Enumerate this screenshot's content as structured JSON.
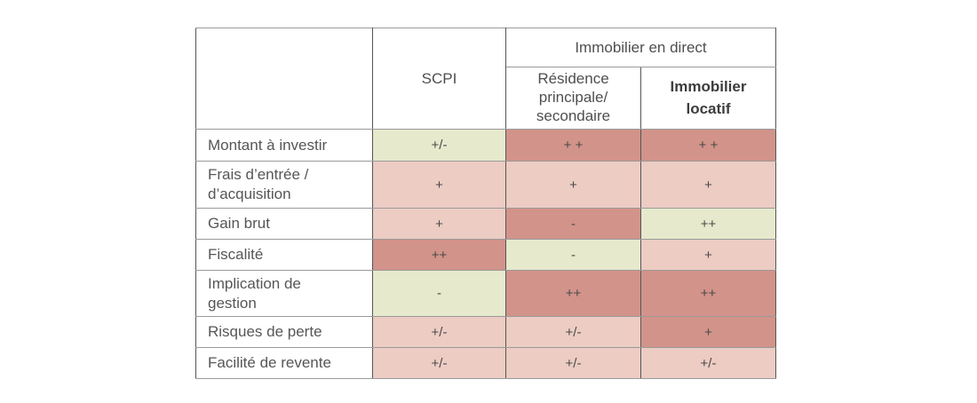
{
  "table": {
    "header": {
      "corner": "",
      "scpi": "SCPI",
      "group": "Immobilier en direct",
      "sub_residence": "Résidence principale/ secondaire",
      "sub_locatif": "Immobilier locatif"
    },
    "cell_colors": {
      "light_green": "#e6e9cc",
      "light_pink": "#ecccc3",
      "salmon": "#d2938a"
    },
    "rows": [
      {
        "label": "Montant à investir",
        "cells": [
          {
            "value": "+/-",
            "color": "light_green"
          },
          {
            "value": "+ +",
            "color": "salmon"
          },
          {
            "value": "+ +",
            "color": "salmon"
          }
        ]
      },
      {
        "label": "Frais d’entrée / d’acquisition",
        "cells": [
          {
            "value": "+",
            "color": "light_pink"
          },
          {
            "value": "+",
            "color": "light_pink"
          },
          {
            "value": "+",
            "color": "light_pink"
          }
        ]
      },
      {
        "label": "Gain brut",
        "cells": [
          {
            "value": "+",
            "color": "light_pink"
          },
          {
            "value": "-",
            "color": "salmon"
          },
          {
            "value": "++",
            "color": "light_green"
          }
        ]
      },
      {
        "label": "Fiscalité",
        "cells": [
          {
            "value": "++",
            "color": "salmon"
          },
          {
            "value": "-",
            "color": "light_green"
          },
          {
            "value": "+",
            "color": "light_pink"
          }
        ]
      },
      {
        "label": "Implication de gestion",
        "cells": [
          {
            "value": "-",
            "color": "light_green"
          },
          {
            "value": "++",
            "color": "salmon"
          },
          {
            "value": "++",
            "color": "salmon"
          }
        ]
      },
      {
        "label": "Risques de perte",
        "cells": [
          {
            "value": "+/-",
            "color": "light_pink"
          },
          {
            "value": "+/-",
            "color": "light_pink"
          },
          {
            "value": "+",
            "color": "salmon"
          }
        ]
      },
      {
        "label": "Facilité de revente",
        "cells": [
          {
            "value": "+/-",
            "color": "light_pink"
          },
          {
            "value": "+/-",
            "color": "light_pink"
          },
          {
            "value": "+/-",
            "color": "light_pink"
          }
        ]
      }
    ]
  }
}
